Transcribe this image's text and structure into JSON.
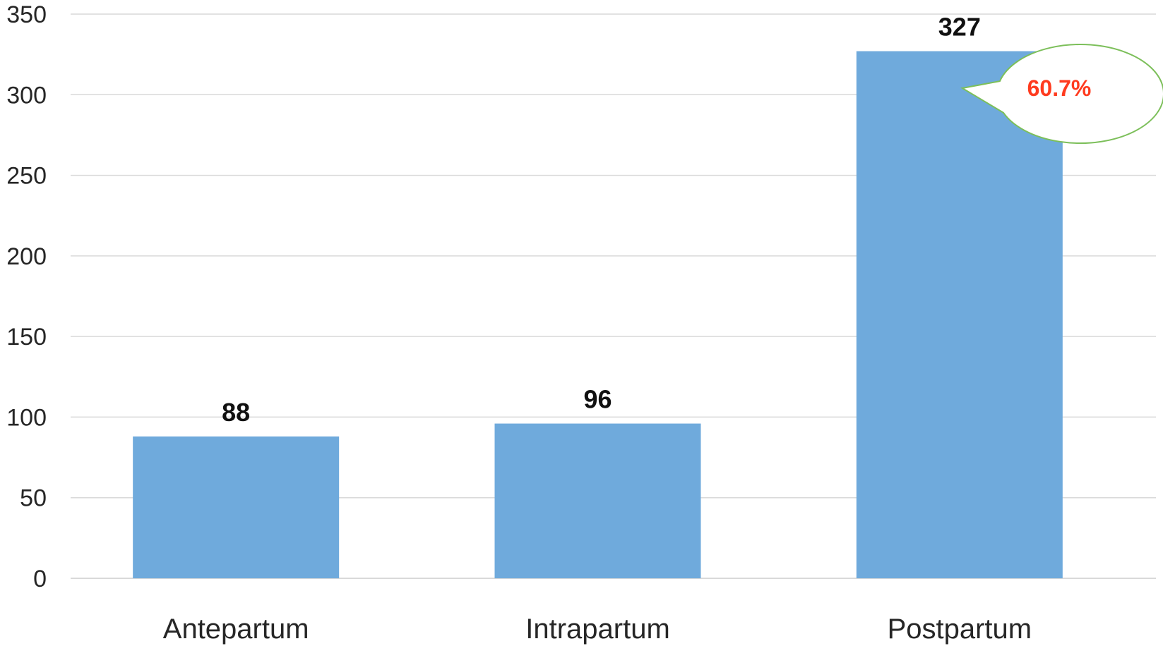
{
  "chart_data": {
    "type": "bar",
    "title": "",
    "xlabel": "",
    "ylabel": "",
    "categories": [
      "Antepartum",
      "Intrapartum",
      "Postpartum"
    ],
    "values": [
      88,
      96,
      327
    ],
    "data_labels": [
      "88",
      "96",
      "327"
    ],
    "ylim": [
      0,
      350
    ],
    "yticks": [
      0,
      50,
      100,
      150,
      200,
      250,
      300,
      350
    ],
    "ytick_labels": [
      "0",
      "50",
      "100",
      "150",
      "200",
      "250",
      "300",
      "350"
    ],
    "grid": "horizontal",
    "legend": "none",
    "bar_color": "#6faadc",
    "grid_color": "#d9d9d9",
    "callout": {
      "text": "60.7%",
      "target_category": "Postpartum",
      "text_color": "#ff3b1f",
      "border_color": "#7cbf5a",
      "fill_color": "#ffffff"
    }
  }
}
